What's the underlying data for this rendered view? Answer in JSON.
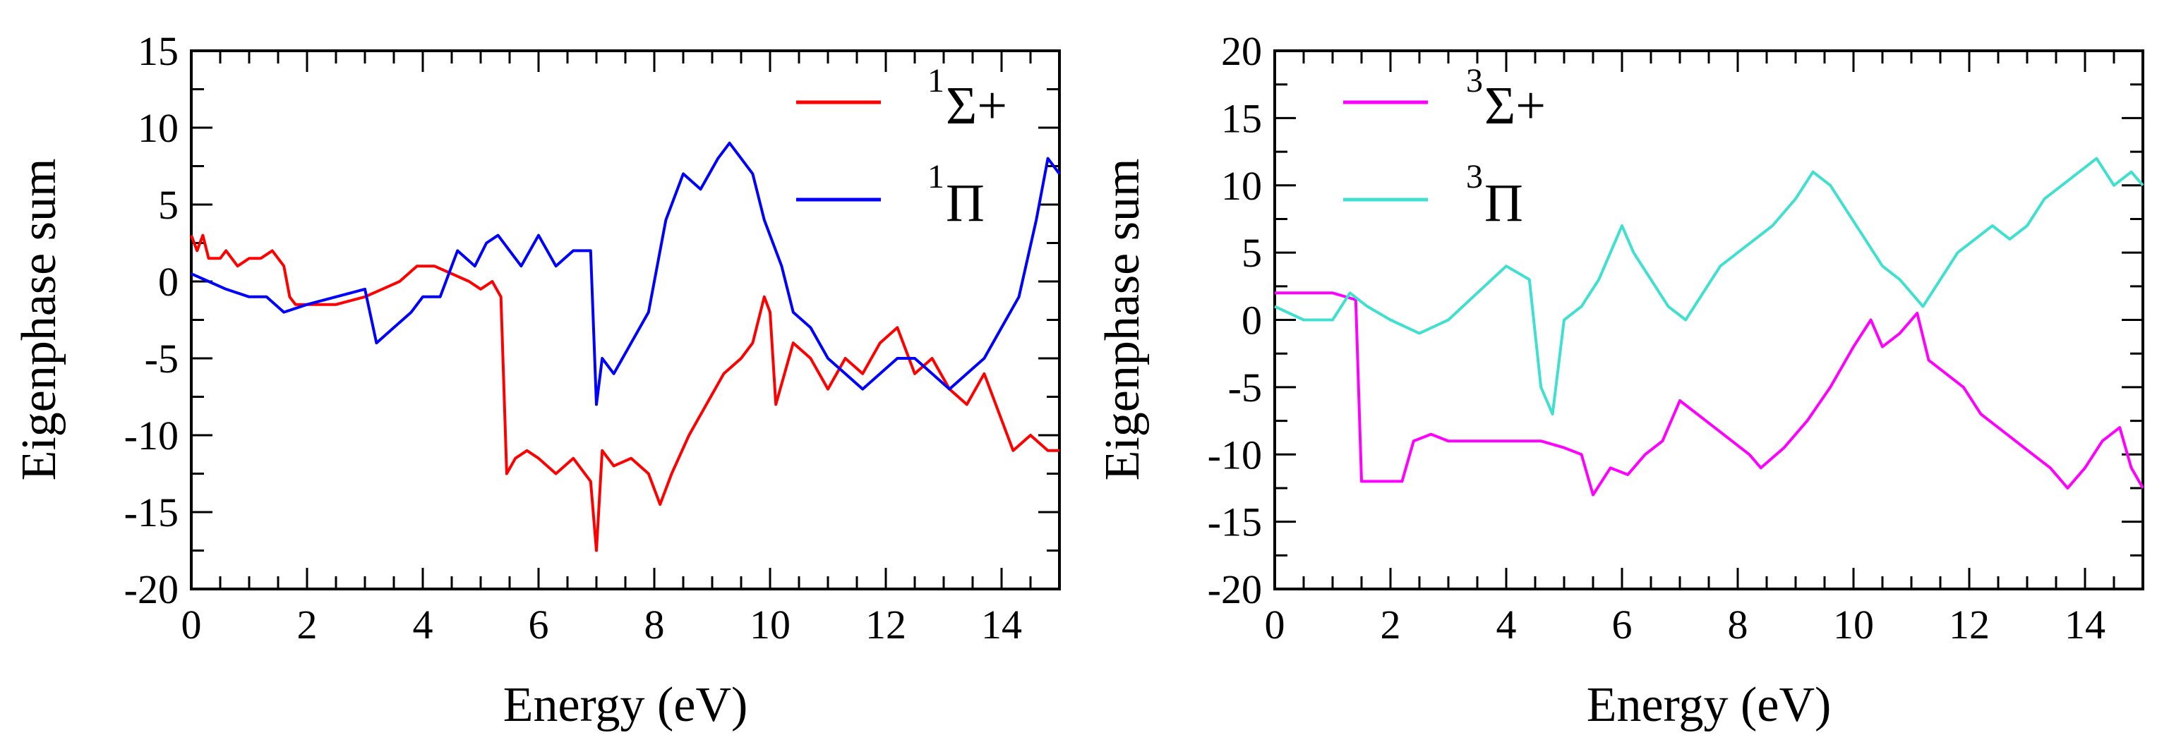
{
  "charts": [
    {
      "type": "line",
      "xlabel": "Energy (eV)",
      "ylabel": "Eigenphase sum",
      "xlim": [
        0,
        15
      ],
      "ylim": [
        -20,
        15
      ],
      "xticks": [
        "0",
        "2",
        "4",
        "6",
        "8",
        "10",
        "12",
        "14"
      ],
      "xtick_values": [
        0,
        2,
        4,
        6,
        8,
        10,
        12,
        14
      ],
      "yticks": [
        "-20",
        "-15",
        "-10",
        "-5",
        "0",
        "5",
        "10",
        "15"
      ],
      "ytick_values": [
        -20,
        -15,
        -10,
        -5,
        0,
        5,
        10,
        15
      ],
      "legend_position": "top-right",
      "series": [
        {
          "name": "Σ+",
          "sup": "1",
          "color": "#ff0000",
          "x": [
            0,
            0.1,
            0.2,
            0.3,
            0.5,
            0.6,
            0.8,
            1.0,
            1.2,
            1.4,
            1.6,
            1.7,
            1.8,
            2.0,
            2.5,
            3.0,
            3.3,
            3.6,
            3.9,
            4.2,
            4.5,
            4.8,
            5.0,
            5.2,
            5.35,
            5.45,
            5.6,
            5.8,
            6.0,
            6.3,
            6.6,
            6.9,
            7.0,
            7.1,
            7.3,
            7.6,
            7.9,
            8.1,
            8.3,
            8.6,
            8.9,
            9.2,
            9.5,
            9.7,
            9.9,
            10.0,
            10.1,
            10.4,
            10.7,
            11.0,
            11.3,
            11.6,
            11.9,
            12.2,
            12.5,
            12.8,
            13.1,
            13.4,
            13.7,
            14.0,
            14.2,
            14.5,
            14.8,
            15.0
          ],
          "y": [
            3,
            2,
            3,
            1.5,
            1.5,
            2,
            1,
            1.5,
            1.5,
            2,
            1,
            -1,
            -1.5,
            -1.5,
            -1.5,
            -1,
            -0.5,
            0,
            1,
            1,
            0.5,
            0,
            -0.5,
            0,
            -1,
            -12.5,
            -11.5,
            -11,
            -11.5,
            -12.5,
            -11.5,
            -13,
            -17.5,
            -11,
            -12,
            -11.5,
            -12.5,
            -14.5,
            -12.5,
            -10,
            -8,
            -6,
            -5,
            -4,
            -1,
            -2,
            -8,
            -4,
            -5,
            -7,
            -5,
            -6,
            -4,
            -3,
            -6,
            -5,
            -7,
            -8,
            -6,
            -9,
            -11,
            -10,
            -11,
            -11
          ]
        },
        {
          "name": "Π",
          "sup": "1",
          "color": "#0000ff",
          "x": [
            0,
            0.3,
            0.6,
            1.0,
            1.3,
            1.6,
            2.0,
            2.5,
            3.0,
            3.2,
            3.5,
            3.8,
            4.0,
            4.3,
            4.6,
            4.9,
            5.1,
            5.3,
            5.5,
            5.7,
            6.0,
            6.3,
            6.6,
            6.9,
            7.0,
            7.1,
            7.3,
            7.6,
            7.9,
            8.2,
            8.5,
            8.8,
            9.1,
            9.3,
            9.5,
            9.7,
            9.9,
            10.0,
            10.2,
            10.4,
            10.7,
            11.0,
            11.3,
            11.6,
            11.9,
            12.2,
            12.5,
            12.8,
            13.1,
            13.4,
            13.7,
            14.0,
            14.3,
            14.6,
            14.8,
            15.0
          ],
          "y": [
            0.5,
            0,
            -0.5,
            -1,
            -1,
            -2,
            -1.5,
            -1,
            -0.5,
            -4,
            -3,
            -2,
            -1,
            -1,
            2,
            1,
            2.5,
            3,
            2,
            1,
            3,
            1,
            2,
            2,
            -8,
            -5,
            -6,
            -4,
            -2,
            4,
            7,
            6,
            8,
            9,
            8,
            7,
            4,
            3,
            1,
            -2,
            -3,
            -5,
            -6,
            -7,
            -6,
            -5,
            -5,
            -6,
            -7,
            -6,
            -5,
            -3,
            -1,
            4,
            8,
            7
          ]
        }
      ]
    },
    {
      "type": "line",
      "xlabel": "Energy (eV)",
      "ylabel": "Eigenphase sum",
      "xlim": [
        0,
        15
      ],
      "ylim": [
        -20,
        20
      ],
      "xticks": [
        "0",
        "2",
        "4",
        "6",
        "8",
        "10",
        "12",
        "14"
      ],
      "xtick_values": [
        0,
        2,
        4,
        6,
        8,
        10,
        12,
        14
      ],
      "yticks": [
        "-20",
        "-15",
        "-10",
        "-5",
        "0",
        "5",
        "10",
        "15",
        "20"
      ],
      "ytick_values": [
        -20,
        -15,
        -10,
        -5,
        0,
        5,
        10,
        15,
        20
      ],
      "legend_position": "top-left",
      "series": [
        {
          "name": "Σ+",
          "sup": "3",
          "color": "#ff00ff",
          "x": [
            0,
            0.5,
            1.0,
            1.4,
            1.5,
            1.6,
            1.9,
            2.2,
            2.4,
            2.7,
            3.0,
            3.4,
            3.8,
            4.2,
            4.6,
            5.0,
            5.3,
            5.5,
            5.8,
            6.1,
            6.4,
            6.7,
            7.0,
            7.3,
            7.6,
            7.9,
            8.2,
            8.4,
            8.8,
            9.2,
            9.6,
            10.0,
            10.3,
            10.5,
            10.8,
            11.1,
            11.3,
            11.6,
            11.9,
            12.2,
            12.5,
            12.8,
            13.1,
            13.4,
            13.7,
            14.0,
            14.3,
            14.6,
            14.8,
            15.0
          ],
          "y": [
            2,
            2,
            2,
            1.5,
            -12,
            -12,
            -12,
            -12,
            -9,
            -8.5,
            -9,
            -9,
            -9,
            -9,
            -9,
            -9.5,
            -10,
            -13,
            -11,
            -11.5,
            -10,
            -9,
            -6,
            -7,
            -8,
            -9,
            -10,
            -11,
            -9.5,
            -7.5,
            -5,
            -2,
            0,
            -2,
            -1,
            0.5,
            -3,
            -4,
            -5,
            -7,
            -8,
            -9,
            -10,
            -11,
            -12.5,
            -11,
            -9,
            -8,
            -11,
            -12.5
          ]
        },
        {
          "name": "Π",
          "sup": "3",
          "color": "#40e0d0",
          "x": [
            0,
            0.5,
            1.0,
            1.3,
            1.6,
            2.0,
            2.5,
            3.0,
            3.5,
            4.0,
            4.4,
            4.6,
            4.8,
            5.0,
            5.3,
            5.6,
            6.0,
            6.2,
            6.5,
            6.8,
            7.1,
            7.4,
            7.7,
            8.0,
            8.3,
            8.6,
            9.0,
            9.3,
            9.6,
            9.9,
            10.2,
            10.5,
            10.8,
            11.0,
            11.2,
            11.5,
            11.8,
            12.1,
            12.4,
            12.7,
            13.0,
            13.3,
            13.6,
            13.9,
            14.2,
            14.5,
            14.8,
            15.0
          ],
          "y": [
            1,
            0,
            0,
            2,
            1,
            0,
            -1,
            0,
            2,
            4,
            3,
            -5,
            -7,
            0,
            1,
            3,
            7,
            5,
            3,
            1,
            0,
            2,
            4,
            5,
            6,
            7,
            9,
            11,
            10,
            8,
            6,
            4,
            3,
            2,
            1,
            3,
            5,
            6,
            7,
            6,
            7,
            9,
            10,
            11,
            12,
            10,
            11,
            10
          ]
        }
      ]
    }
  ]
}
